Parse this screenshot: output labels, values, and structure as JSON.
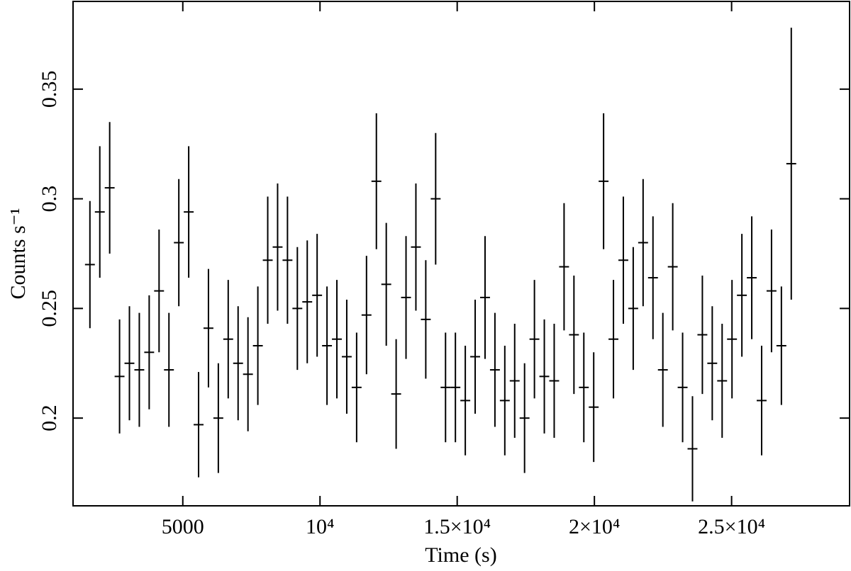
{
  "chart_data": {
    "type": "errorbar",
    "xlabel": "Time (s)",
    "ylabel": "Counts s⁻¹",
    "x": [
      1615,
      1975,
      2335,
      2695,
      3055,
      3415,
      3775,
      4135,
      4495,
      4855,
      5215,
      5575,
      5935,
      6295,
      6655,
      7015,
      7375,
      7735,
      8095,
      8455,
      8815,
      9175,
      9535,
      9895,
      10255,
      10615,
      10975,
      11335,
      11695,
      12055,
      12415,
      12775,
      13135,
      13495,
      13855,
      14215,
      14575,
      14935,
      15295,
      15655,
      16015,
      16375,
      16735,
      17095,
      17455,
      17815,
      18175,
      18535,
      18895,
      19255,
      19615,
      19975,
      20335,
      20695,
      21055,
      21415,
      21775,
      22135,
      22495,
      22855,
      23215,
      23575,
      23935,
      24295,
      24655,
      25015,
      25375,
      25735,
      26095,
      26455,
      26815,
      27175
    ],
    "values": [
      0.27,
      0.294,
      0.305,
      0.219,
      0.225,
      0.222,
      0.23,
      0.258,
      0.222,
      0.28,
      0.294,
      0.197,
      0.241,
      0.2,
      0.236,
      0.225,
      0.22,
      0.233,
      0.272,
      0.278,
      0.272,
      0.25,
      0.253,
      0.256,
      0.233,
      0.236,
      0.228,
      0.214,
      0.247,
      0.308,
      0.261,
      0.211,
      0.255,
      0.278,
      0.245,
      0.3,
      0.214,
      0.214,
      0.208,
      0.228,
      0.255,
      0.222,
      0.208,
      0.217,
      0.2,
      0.236,
      0.219,
      0.217,
      0.269,
      0.238,
      0.214,
      0.205,
      0.308,
      0.236,
      0.272,
      0.25,
      0.28,
      0.264,
      0.222,
      0.269,
      0.214,
      0.186,
      0.238,
      0.225,
      0.217,
      0.236,
      0.256,
      0.264,
      0.208,
      0.258,
      0.233,
      0.316
    ],
    "errors": [
      0.029,
      0.03,
      0.03,
      0.026,
      0.026,
      0.026,
      0.026,
      0.028,
      0.026,
      0.029,
      0.03,
      0.024,
      0.027,
      0.025,
      0.027,
      0.026,
      0.026,
      0.027,
      0.029,
      0.029,
      0.029,
      0.028,
      0.028,
      0.028,
      0.027,
      0.027,
      0.026,
      0.025,
      0.027,
      0.031,
      0.028,
      0.025,
      0.028,
      0.029,
      0.027,
      0.03,
      0.025,
      0.025,
      0.025,
      0.026,
      0.028,
      0.026,
      0.025,
      0.026,
      0.025,
      0.027,
      0.026,
      0.026,
      0.029,
      0.027,
      0.025,
      0.025,
      0.031,
      0.027,
      0.029,
      0.028,
      0.029,
      0.028,
      0.026,
      0.029,
      0.025,
      0.024,
      0.027,
      0.026,
      0.026,
      0.027,
      0.028,
      0.028,
      0.025,
      0.028,
      0.027,
      0.062
    ],
    "x_error": 180,
    "color": "#000000",
    "xlim": [
      1000,
      29300
    ],
    "ylim": [
      0.16,
      0.39
    ],
    "xticks": [
      5000,
      {
        "value": 10000,
        "label": "10⁴"
      },
      {
        "value": 15000,
        "label": "1.5×10⁴"
      },
      {
        "value": 20000,
        "label": "2×10⁴"
      },
      {
        "value": 25000,
        "label": "2.5×10⁴"
      }
    ],
    "yticks": [
      0.2,
      0.25,
      0.3,
      0.35
    ]
  }
}
